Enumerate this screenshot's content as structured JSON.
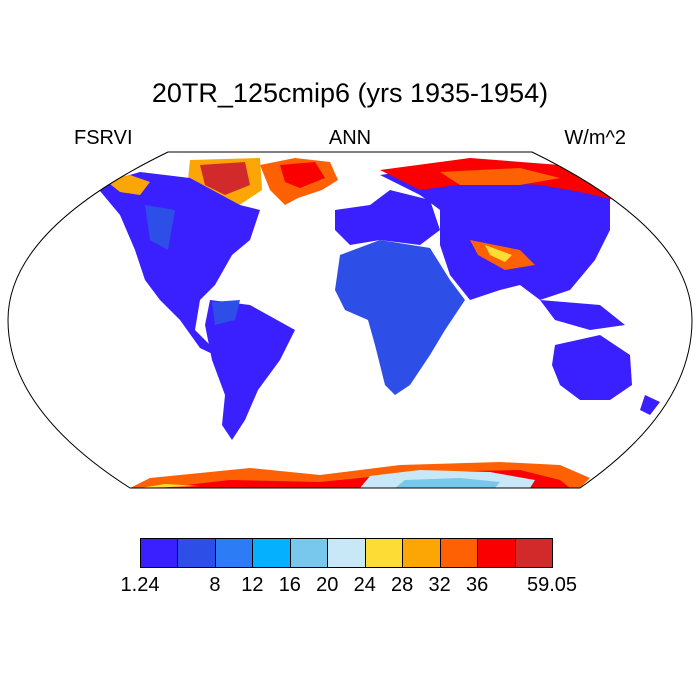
{
  "title": "20TR_125cmip6 (yrs 1935-1954)",
  "left_label": "FSRVI",
  "center_label": "ANN",
  "right_label": "W/m^2",
  "colorbar": {
    "colors": [
      "#3a1fff",
      "#2d4fe8",
      "#2b7cf5",
      "#05b0ff",
      "#78c8ee",
      "#c8e8f8",
      "#fddc35",
      "#fca605",
      "#fd6104",
      "#fb0000",
      "#d22a2a"
    ],
    "labels": [
      "1.24",
      "8",
      "12",
      "16",
      "20",
      "24",
      "28",
      "32",
      "36",
      "59.05"
    ],
    "label_positions": [
      0,
      2,
      3,
      4,
      5,
      6,
      7,
      8,
      9,
      11
    ]
  },
  "map_colors": {
    "low": "#3a1fff",
    "mid": "#2d4fe8",
    "light": "#78c8ee",
    "pale": "#c8e8f8",
    "yellow": "#fddc35",
    "orange": "#fca605",
    "red": "#fb0000",
    "darkred": "#d22a2a"
  }
}
